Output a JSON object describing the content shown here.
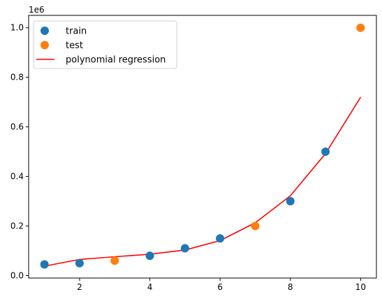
{
  "chart_data": {
    "type": "scatter",
    "title": "",
    "xlabel": "",
    "ylabel": "",
    "y_offset_text": "1e6",
    "xlim": [
      0.55,
      10.45
    ],
    "ylim": [
      -0.01,
      1.05
    ],
    "x_ticks": [
      2,
      4,
      6,
      8,
      10
    ],
    "x_tick_labels": [
      "2",
      "4",
      "6",
      "8",
      "10"
    ],
    "y_ticks": [
      0.0,
      0.2,
      0.4,
      0.6,
      0.8,
      1.0
    ],
    "y_tick_labels": [
      "0.0",
      "0.2",
      "0.4",
      "0.6",
      "0.8",
      "1.0"
    ],
    "grid": false,
    "legend_position": "top-left",
    "series": [
      {
        "name": "train",
        "kind": "scatter",
        "color": "#1f77b4",
        "x": [
          1,
          2,
          4,
          5,
          6,
          8,
          9
        ],
        "y": [
          0.045,
          0.05,
          0.08,
          0.11,
          0.15,
          0.3,
          0.5
        ]
      },
      {
        "name": "test",
        "kind": "scatter",
        "color": "#ff7f0e",
        "x": [
          3,
          7,
          10
        ],
        "y": [
          0.06,
          0.2,
          1.0
        ]
      },
      {
        "name": "polynomial regression",
        "kind": "line",
        "color": "#ff0000",
        "x": [
          1,
          2,
          3,
          4,
          5,
          6,
          7,
          8,
          9,
          10
        ],
        "y": [
          0.038,
          0.065,
          0.076,
          0.086,
          0.103,
          0.141,
          0.213,
          0.322,
          0.492,
          0.72
        ]
      }
    ]
  }
}
